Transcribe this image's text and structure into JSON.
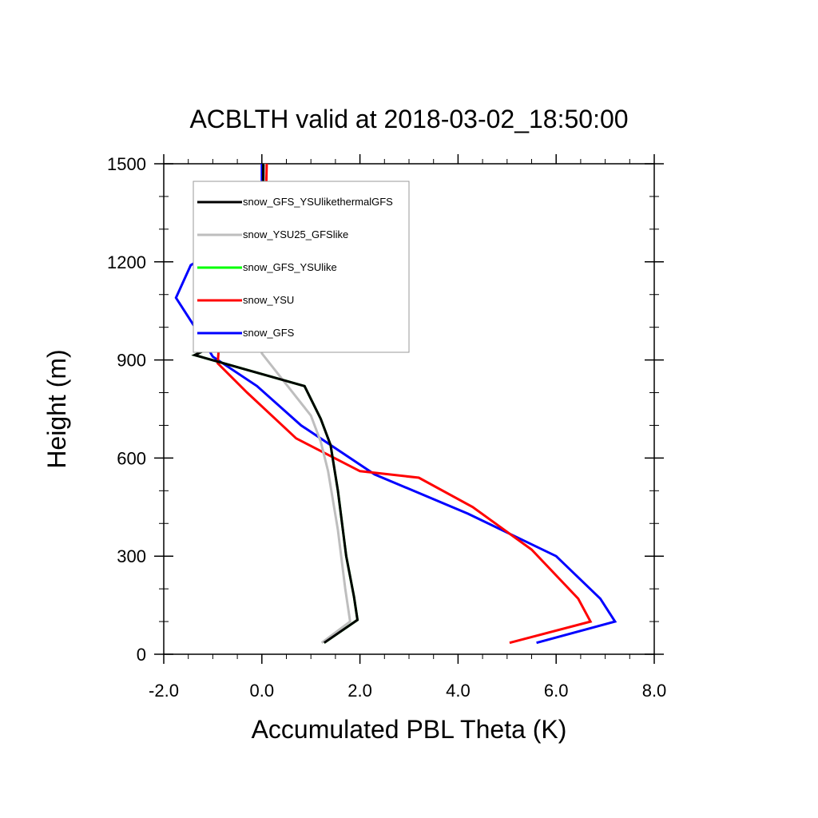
{
  "chart_data": {
    "type": "line",
    "title": "ACBLTH valid at 2018-03-02_18:50:00",
    "xlabel": "Accumulated PBL Theta (K)",
    "ylabel": "Height (m)",
    "xlim": [
      -2.0,
      8.0
    ],
    "ylim": [
      0,
      1500
    ],
    "xticks": [
      -2.0,
      0.0,
      2.0,
      4.0,
      6.0,
      8.0
    ],
    "xtick_labels": [
      "-2.0",
      "0.0",
      "2.0",
      "4.0",
      "6.0",
      "8.0"
    ],
    "yticks": [
      0,
      300,
      600,
      900,
      1200,
      1500
    ],
    "ytick_labels": [
      "0",
      "300",
      "600",
      "900",
      "1200",
      "1500"
    ],
    "x_minor_step": 0.5,
    "y_minor_step": 100,
    "legend_position": "top-left",
    "series": [
      {
        "name": "snow_GFS_YSUlikethermalGFS",
        "color": "#000000",
        "points": [
          [
            1.27,
            35
          ],
          [
            1.95,
            105
          ],
          [
            1.88,
            175
          ],
          [
            1.72,
            300
          ],
          [
            1.55,
            500
          ],
          [
            1.4,
            640
          ],
          [
            1.2,
            720
          ],
          [
            0.87,
            820
          ],
          [
            -1.37,
            915
          ],
          [
            -0.05,
            1010
          ],
          [
            0.0,
            1100
          ],
          [
            0.02,
            1200
          ],
          [
            0.02,
            1300
          ],
          [
            0.03,
            1500
          ]
        ]
      },
      {
        "name": "snow_YSU25_GFSlike",
        "color": "#bebebe",
        "points": [
          [
            1.22,
            35
          ],
          [
            1.8,
            100
          ],
          [
            1.7,
            200
          ],
          [
            1.55,
            380
          ],
          [
            1.35,
            560
          ],
          [
            1.2,
            650
          ],
          [
            1.0,
            730
          ],
          [
            0.0,
            920
          ],
          [
            0.0,
            1100
          ],
          [
            0.02,
            1300
          ],
          [
            0.05,
            1500
          ]
        ]
      },
      {
        "name": "snow_GFS_YSUlike",
        "color": "#00ff00",
        "points": [
          [
            1.27,
            35
          ],
          [
            1.95,
            105
          ],
          [
            1.88,
            175
          ],
          [
            1.72,
            300
          ],
          [
            1.55,
            500
          ],
          [
            1.4,
            640
          ],
          [
            1.2,
            720
          ],
          [
            0.87,
            820
          ],
          [
            -1.37,
            915
          ],
          [
            -0.05,
            1010
          ],
          [
            0.0,
            1100
          ],
          [
            0.02,
            1200
          ],
          [
            0.02,
            1300
          ],
          [
            0.03,
            1500
          ]
        ]
      },
      {
        "name": "snow_YSU",
        "color": "#ff0000",
        "points": [
          [
            5.05,
            35
          ],
          [
            6.7,
            100
          ],
          [
            6.45,
            170
          ],
          [
            5.5,
            320
          ],
          [
            4.3,
            450
          ],
          [
            3.2,
            540
          ],
          [
            2.0,
            560
          ],
          [
            0.7,
            660
          ],
          [
            -0.3,
            800
          ],
          [
            -0.9,
            890
          ],
          [
            -0.85,
            990
          ],
          [
            -0.05,
            1090
          ],
          [
            0.05,
            1200
          ],
          [
            0.07,
            1300
          ],
          [
            0.1,
            1500
          ]
        ]
      },
      {
        "name": "snow_GFS",
        "color": "#0000ff",
        "points": [
          [
            5.6,
            35
          ],
          [
            7.2,
            100
          ],
          [
            6.9,
            170
          ],
          [
            6.0,
            300
          ],
          [
            4.2,
            430
          ],
          [
            2.3,
            550
          ],
          [
            0.8,
            700
          ],
          [
            -0.1,
            820
          ],
          [
            -1.0,
            910
          ],
          [
            -1.3,
            985
          ],
          [
            -1.75,
            1090
          ],
          [
            -1.45,
            1190
          ],
          [
            -0.2,
            1300
          ],
          [
            0.0,
            1400
          ],
          [
            0.0,
            1500
          ]
        ]
      }
    ]
  }
}
